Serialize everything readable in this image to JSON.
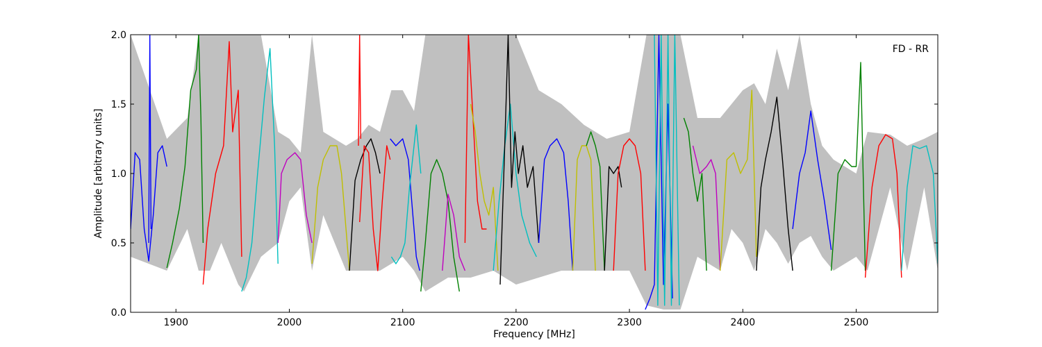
{
  "chart_data": {
    "type": "line",
    "title": "",
    "annotation": "FD - RR",
    "xlabel": "Frequency [MHz]",
    "ylabel": "Amplitude [arbitrary units]",
    "xlim": [
      1860,
      2572
    ],
    "ylim": [
      0.0,
      2.0
    ],
    "xticks": [
      1900,
      2000,
      2100,
      2200,
      2300,
      2400,
      2500
    ],
    "xtick_labels": [
      "1900",
      "2000",
      "2100",
      "2200",
      "2300",
      "2400",
      "2500"
    ],
    "yticks": [
      0.0,
      0.5,
      1.0,
      1.5,
      2.0
    ],
    "ytick_labels": [
      "0.0",
      "0.5",
      "1.0",
      "1.5",
      "2.0"
    ],
    "grid": false,
    "envelope": {
      "color": "#c0c0c0",
      "upper": [
        [
          1860,
          2.0
        ],
        [
          1892,
          1.25
        ],
        [
          1910,
          1.4
        ],
        [
          1920,
          2.0
        ],
        [
          1930,
          2.0
        ],
        [
          1940,
          2.0
        ],
        [
          1955,
          2.0
        ],
        [
          1960,
          2.0
        ],
        [
          1975,
          2.0
        ],
        [
          1990,
          1.3
        ],
        [
          2000,
          1.25
        ],
        [
          2010,
          1.15
        ],
        [
          2020,
          2.0
        ],
        [
          2030,
          1.3
        ],
        [
          2050,
          1.2
        ],
        [
          2060,
          1.25
        ],
        [
          2070,
          1.35
        ],
        [
          2080,
          1.3
        ],
        [
          2090,
          1.6
        ],
        [
          2100,
          1.6
        ],
        [
          2110,
          1.45
        ],
        [
          2120,
          2.0
        ],
        [
          2140,
          2.0
        ],
        [
          2160,
          2.0
        ],
        [
          2180,
          2.0
        ],
        [
          2200,
          2.0
        ],
        [
          2220,
          1.6
        ],
        [
          2240,
          1.5
        ],
        [
          2260,
          1.35
        ],
        [
          2270,
          1.3
        ],
        [
          2280,
          1.25
        ],
        [
          2300,
          1.3
        ],
        [
          2315,
          2.0
        ],
        [
          2330,
          2.0
        ],
        [
          2345,
          2.0
        ],
        [
          2360,
          1.4
        ],
        [
          2380,
          1.4
        ],
        [
          2390,
          1.5
        ],
        [
          2400,
          1.6
        ],
        [
          2410,
          1.65
        ],
        [
          2420,
          1.5
        ],
        [
          2430,
          1.9
        ],
        [
          2440,
          1.6
        ],
        [
          2450,
          2.0
        ],
        [
          2460,
          1.5
        ],
        [
          2470,
          1.2
        ],
        [
          2480,
          1.1
        ],
        [
          2500,
          1.0
        ],
        [
          2510,
          1.3
        ],
        [
          2530,
          1.28
        ],
        [
          2545,
          1.2
        ],
        [
          2560,
          1.25
        ],
        [
          2572,
          1.3
        ]
      ],
      "lower": [
        [
          1860,
          0.4
        ],
        [
          1892,
          0.3
        ],
        [
          1910,
          0.6
        ],
        [
          1920,
          0.3
        ],
        [
          1930,
          0.3
        ],
        [
          1940,
          0.5
        ],
        [
          1955,
          0.2
        ],
        [
          1960,
          0.15
        ],
        [
          1975,
          0.4
        ],
        [
          1990,
          0.5
        ],
        [
          2000,
          0.8
        ],
        [
          2010,
          0.9
        ],
        [
          2020,
          0.3
        ],
        [
          2030,
          0.7
        ],
        [
          2050,
          0.3
        ],
        [
          2060,
          0.3
        ],
        [
          2070,
          0.3
        ],
        [
          2080,
          0.3
        ],
        [
          2090,
          0.35
        ],
        [
          2100,
          0.4
        ],
        [
          2110,
          0.3
        ],
        [
          2120,
          0.15
        ],
        [
          2140,
          0.25
        ],
        [
          2160,
          0.25
        ],
        [
          2180,
          0.3
        ],
        [
          2200,
          0.2
        ],
        [
          2220,
          0.25
        ],
        [
          2240,
          0.3
        ],
        [
          2260,
          0.3
        ],
        [
          2270,
          0.3
        ],
        [
          2280,
          0.3
        ],
        [
          2300,
          0.3
        ],
        [
          2315,
          0.05
        ],
        [
          2330,
          0.02
        ],
        [
          2345,
          0.02
        ],
        [
          2360,
          0.4
        ],
        [
          2380,
          0.3
        ],
        [
          2390,
          0.6
        ],
        [
          2400,
          0.5
        ],
        [
          2410,
          0.3
        ],
        [
          2420,
          0.6
        ],
        [
          2430,
          0.5
        ],
        [
          2440,
          0.35
        ],
        [
          2450,
          0.5
        ],
        [
          2460,
          0.55
        ],
        [
          2470,
          0.4
        ],
        [
          2480,
          0.3
        ],
        [
          2500,
          0.4
        ],
        [
          2510,
          0.3
        ],
        [
          2530,
          0.9
        ],
        [
          2545,
          0.3
        ],
        [
          2560,
          0.9
        ],
        [
          2572,
          0.3
        ]
      ]
    },
    "series": [
      {
        "color": "#0000ff",
        "x": [
          1860,
          1864,
          1868,
          1872,
          1876,
          1880,
          1884,
          1888,
          1892
        ],
        "y": [
          0.6,
          1.15,
          1.1,
          0.6,
          0.37,
          0.7,
          1.15,
          1.2,
          1.05
        ]
      },
      {
        "color": "#0000ff",
        "x": [
          1876,
          1877,
          1878
        ],
        "y": [
          0.5,
          2.0,
          0.6
        ]
      },
      {
        "color": "#008000",
        "x": [
          1892,
          1897,
          1903,
          1908,
          1913,
          1918,
          1920,
          1922,
          1924
        ],
        "y": [
          0.32,
          0.5,
          0.75,
          1.05,
          1.6,
          1.75,
          2.0,
          1.4,
          0.5
        ]
      },
      {
        "color": "#ff0000",
        "x": [
          1924,
          1928,
          1935,
          1942,
          1947,
          1950,
          1955,
          1958
        ],
        "y": [
          0.2,
          0.6,
          1.0,
          1.2,
          1.95,
          1.3,
          1.6,
          0.4
        ]
      },
      {
        "color": "#00bfbf",
        "x": [
          1958,
          1962,
          1967,
          1972,
          1978,
          1983,
          1987,
          1990
        ],
        "y": [
          0.15,
          0.25,
          0.5,
          1.0,
          1.55,
          1.9,
          1.2,
          0.35
        ]
      },
      {
        "color": "#bf00bf",
        "x": [
          1990,
          1993,
          1998,
          2005,
          2010,
          2015,
          2020
        ],
        "y": [
          0.5,
          1.0,
          1.1,
          1.15,
          1.1,
          0.7,
          0.5
        ]
      },
      {
        "color": "#bfbf00",
        "x": [
          2020,
          2025,
          2030,
          2036,
          2042,
          2046,
          2050,
          2053
        ],
        "y": [
          0.35,
          0.9,
          1.1,
          1.2,
          1.2,
          1.0,
          0.6,
          0.3
        ]
      },
      {
        "color": "#000000",
        "x": [
          2053,
          2058,
          2063,
          2068,
          2072,
          2076,
          2080
        ],
        "y": [
          0.3,
          0.95,
          1.1,
          1.2,
          1.25,
          1.15,
          1.0
        ]
      },
      {
        "color": "#ff0000",
        "x": [
          2062,
          2066,
          2070,
          2074,
          2078,
          2082,
          2086,
          2089
        ],
        "y": [
          0.65,
          1.2,
          1.15,
          0.6,
          0.3,
          0.8,
          1.2,
          1.1
        ]
      },
      {
        "color": "#ff0000",
        "x": [
          2061,
          2062,
          2063
        ],
        "y": [
          1.2,
          2.0,
          1.25
        ]
      },
      {
        "color": "#0000ff",
        "x": [
          2089,
          2094,
          2100,
          2105,
          2108,
          2112,
          2115
        ],
        "y": [
          1.25,
          1.2,
          1.25,
          1.1,
          0.8,
          0.4,
          0.3
        ]
      },
      {
        "color": "#00bfbf",
        "x": [
          2090,
          2094,
          2098,
          2102,
          2106,
          2112,
          2116
        ],
        "y": [
          0.4,
          0.35,
          0.4,
          0.5,
          0.9,
          1.35,
          1.0
        ]
      },
      {
        "color": "#008000",
        "x": [
          2116,
          2120,
          2125,
          2130,
          2135,
          2140,
          2145,
          2150
        ],
        "y": [
          0.15,
          0.5,
          1.0,
          1.1,
          1.0,
          0.8,
          0.4,
          0.15
        ]
      },
      {
        "color": "#bf00bf",
        "x": [
          2135,
          2140,
          2145,
          2150,
          2155
        ],
        "y": [
          0.3,
          0.85,
          0.7,
          0.4,
          0.3
        ]
      },
      {
        "color": "#ff0000",
        "x": [
          2155,
          2158,
          2162,
          2166,
          2170,
          2174
        ],
        "y": [
          0.5,
          2.0,
          1.4,
          0.8,
          0.6,
          0.6
        ]
      },
      {
        "color": "#bfbf00",
        "x": [
          2160,
          2164,
          2168,
          2172,
          2176,
          2180,
          2184
        ],
        "y": [
          1.5,
          1.3,
          1.0,
          0.8,
          0.7,
          0.9,
          0.3
        ]
      },
      {
        "color": "#00bfbf",
        "x": [
          2180,
          2185,
          2190,
          2195,
          2200,
          2205,
          2212,
          2218
        ],
        "y": [
          0.3,
          0.8,
          1.2,
          1.5,
          1.0,
          0.7,
          0.5,
          0.4
        ]
      },
      {
        "color": "#000000",
        "x": [
          2186,
          2190,
          2193,
          2196,
          2199,
          2202,
          2206,
          2210,
          2215,
          2220
        ],
        "y": [
          0.2,
          1.2,
          2.0,
          0.9,
          1.3,
          1.0,
          1.2,
          0.9,
          1.05,
          0.5
        ]
      },
      {
        "color": "#0000ff",
        "x": [
          2220,
          2225,
          2230,
          2236,
          2242,
          2246,
          2250
        ],
        "y": [
          0.5,
          1.1,
          1.2,
          1.25,
          1.15,
          0.8,
          0.3
        ]
      },
      {
        "color": "#bfbf00",
        "x": [
          2250,
          2254,
          2258,
          2262,
          2266,
          2270
        ],
        "y": [
          0.3,
          1.1,
          1.2,
          1.2,
          1.1,
          0.3
        ]
      },
      {
        "color": "#008000",
        "x": [
          2262,
          2266,
          2270,
          2274,
          2278
        ],
        "y": [
          1.2,
          1.3,
          1.2,
          1.05,
          0.3
        ]
      },
      {
        "color": "#000000",
        "x": [
          2278,
          2282,
          2286,
          2290,
          2293
        ],
        "y": [
          0.3,
          1.05,
          1.0,
          1.05,
          0.9
        ]
      },
      {
        "color": "#ff0000",
        "x": [
          2286,
          2290,
          2295,
          2300,
          2305,
          2310,
          2314
        ],
        "y": [
          0.3,
          1.0,
          1.2,
          1.25,
          1.2,
          1.0,
          0.3
        ]
      },
      {
        "color": "#0000ff",
        "x": [
          2314,
          2318,
          2322,
          2326,
          2330,
          2334,
          2338
        ],
        "y": [
          0.02,
          0.1,
          0.2,
          2.0,
          0.2,
          1.5,
          0.1
        ]
      },
      {
        "color": "#00bfbf",
        "x": [
          2322,
          2325,
          2328,
          2331,
          2334,
          2337,
          2340,
          2344
        ],
        "y": [
          2.0,
          0.05,
          2.0,
          0.05,
          2.0,
          0.05,
          2.0,
          0.05
        ]
      },
      {
        "color": "#008000",
        "x": [
          2348,
          2352,
          2356,
          2360,
          2364,
          2368
        ],
        "y": [
          1.4,
          1.3,
          1.0,
          0.8,
          1.0,
          0.3
        ]
      },
      {
        "color": "#bf00bf",
        "x": [
          2356,
          2362,
          2368,
          2372,
          2376,
          2380
        ],
        "y": [
          1.2,
          1.0,
          1.05,
          1.1,
          1.0,
          0.3
        ]
      },
      {
        "color": "#bfbf00",
        "x": [
          2380,
          2386,
          2392,
          2398,
          2404,
          2408,
          2412
        ],
        "y": [
          0.3,
          1.1,
          1.15,
          1.0,
          1.1,
          1.6,
          0.4
        ]
      },
      {
        "color": "#000000",
        "x": [
          2412,
          2416,
          2420,
          2425,
          2430,
          2435,
          2440,
          2444
        ],
        "y": [
          0.3,
          0.9,
          1.1,
          1.3,
          1.55,
          1.1,
          0.6,
          0.3
        ]
      },
      {
        "color": "#0000ff",
        "x": [
          2444,
          2450,
          2455,
          2460,
          2466,
          2472,
          2478
        ],
        "y": [
          0.6,
          1.0,
          1.15,
          1.45,
          1.1,
          0.8,
          0.45
        ]
      },
      {
        "color": "#008000",
        "x": [
          2478,
          2484,
          2490,
          2496,
          2500,
          2504,
          2508
        ],
        "y": [
          0.3,
          1.0,
          1.1,
          1.05,
          1.05,
          1.8,
          0.3
        ]
      },
      {
        "color": "#ff0000",
        "x": [
          2508,
          2514,
          2520,
          2526,
          2532,
          2536,
          2540
        ],
        "y": [
          0.25,
          0.9,
          1.2,
          1.28,
          1.25,
          1.0,
          0.25
        ]
      },
      {
        "color": "#00bfbf",
        "x": [
          2540,
          2545,
          2550,
          2556,
          2562,
          2568,
          2572
        ],
        "y": [
          0.3,
          0.9,
          1.2,
          1.18,
          1.2,
          1.0,
          0.35
        ]
      }
    ]
  }
}
